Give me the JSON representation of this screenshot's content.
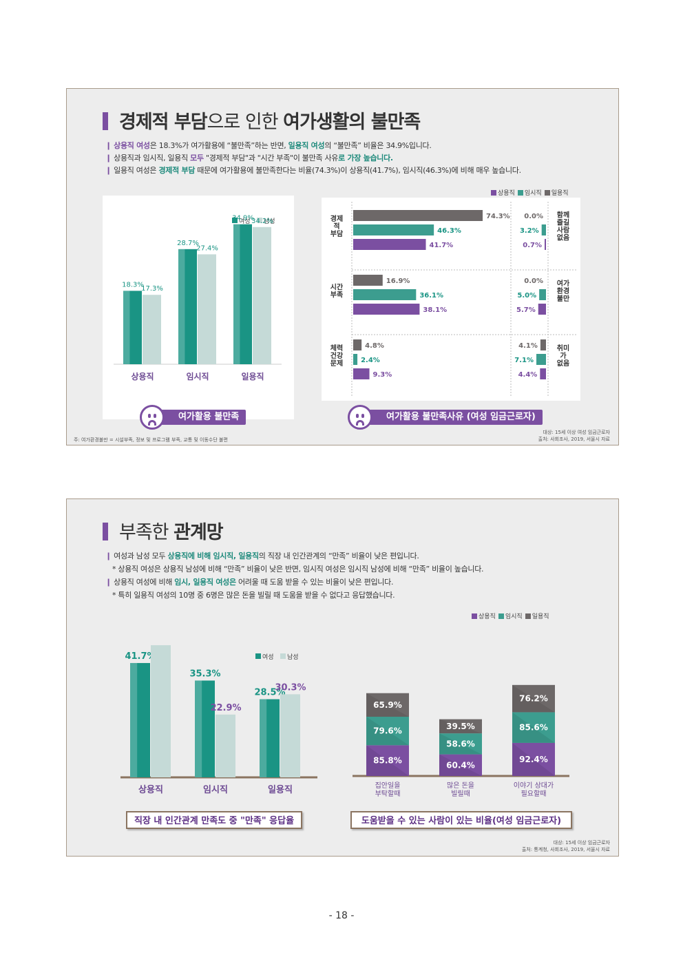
{
  "panel1": {
    "title": {
      "b1": "경제적 부담",
      "t1": "으로 인한 ",
      "b2": "여가생활의 불만족"
    },
    "bullets": [
      [
        {
          "t": "상용직 여성",
          "c": "p"
        },
        {
          "t": "은 18.3%가 여가활용에 “불만족”하는 반면, "
        },
        {
          "t": "일용직 여성",
          "c": "g"
        },
        {
          "t": "의 “불만족” 비율은 34.9%입니다."
        }
      ],
      [
        {
          "t": "상용직과 임시직, 일용직 "
        },
        {
          "t": "모두",
          "c": "p"
        },
        {
          "t": " \"경제적 부담\"과 \"시간 부족\"이 불만족 사유"
        },
        {
          "t": "로 가장 높습니다.",
          "c": "g"
        }
      ],
      [
        {
          "t": "일용직 여성은 "
        },
        {
          "t": "경제적 부담",
          "c": "g"
        },
        {
          "t": " 때문에 여가활용에 불만족한다는 비율(74.3%)이 상용직(41.7%), 임시직(46.3%)에 비해 매우 높습니다."
        }
      ]
    ],
    "chart_left": {
      "type": "bar",
      "categories": [
        "상용직",
        "임시직",
        "일용직"
      ],
      "series": [
        {
          "name": "여성",
          "values": [
            18.3,
            28.7,
            34.9
          ],
          "color": "#1a9484"
        },
        {
          "name": "남성",
          "values": [
            17.3,
            27.4,
            34.2
          ],
          "color": "#c5dad7"
        }
      ],
      "value_suffix": "%",
      "ylim": [
        0,
        40
      ]
    },
    "chart_right": {
      "type": "bar",
      "orientation": "horizontal",
      "legend": [
        "상용직",
        "임시직",
        "일용직"
      ],
      "colors": {
        "상용직": "#7b4fa1",
        "임시직": "#3c9d8f",
        "일용직": "#6d6868"
      },
      "groups_left": [
        {
          "label": "경제\n적\n부담",
          "values": {
            "일용직": 74.3,
            "임시직": 46.3,
            "상용직": 41.7
          }
        },
        {
          "label": "시간\n부족",
          "values": {
            "일용직": 16.9,
            "임시직": 36.1,
            "상용직": 38.1
          }
        },
        {
          "label": "체력\n건강\n문제",
          "values": {
            "일용직": 4.8,
            "임시직": 2.4,
            "상용직": 9.3
          }
        }
      ],
      "groups_right": [
        {
          "label": "함께\n즐길\n사람\n없음",
          "values": {
            "일용직": 0.0,
            "임시직": 3.2,
            "상용직": 0.7
          }
        },
        {
          "label": "여가\n환경\n불만",
          "values": {
            "일용직": 0.0,
            "임시직": 5.0,
            "상용직": 5.7
          }
        },
        {
          "label": "취미\n가\n없음",
          "values": {
            "일용직": 4.1,
            "임시직": 7.1,
            "상용직": 4.4
          }
        }
      ]
    },
    "sub_title_left": "여가활용 불만족",
    "sub_title_right": "여가활용 불만족사유 (여성 임금근로자)",
    "note_left": "주: 여가환경불만 = 시설부족, 정보 및 프로그램 부족, 교통 및 이동수단 불편",
    "note_right_1": "대상: 15세 이상 여성 임금근로자",
    "note_right_2": "출처: 사회조사, 2019, 서울시 자료"
  },
  "panel2": {
    "title": {
      "t1": "부족한 ",
      "b1": "관계망"
    },
    "bullets": [
      {
        "sub": false,
        "parts": [
          {
            "t": "여성과 남성 모두 "
          },
          {
            "t": "상용직에 비해 임시직, 일용직",
            "c": "g"
          },
          {
            "t": "의 직장 내 인간관계의 “만족” 비율이 낮은 편입니다."
          }
        ]
      },
      {
        "sub": true,
        "parts": [
          {
            "t": "* 상용직 여성은 상용직 남성에 비해 “만족” 비율이 낮은 반면, 임시직 여성은 임시직 남성에 비해 “만족” 비율이 높습니다."
          }
        ]
      },
      {
        "sub": false,
        "parts": [
          {
            "t": "상용직 여성"
          },
          {
            "t": "에 비해 "
          },
          {
            "t": "임시, 일용직 여성은",
            "c": "g"
          },
          {
            "t": " 어려울 때 도움 받을 수 있는 비율이 낮은 편입니다."
          }
        ]
      },
      {
        "sub": true,
        "parts": [
          {
            "t": "* 특히 일용직 여성의 10명 중 6명은 많은 돈을 빌릴 때 도움을 받을 수 없다고 응답했습니다."
          }
        ]
      }
    ],
    "chart_left": {
      "type": "bar",
      "categories": [
        "상용직",
        "임시직",
        "일용직"
      ],
      "series": [
        {
          "name": "여성",
          "values": [
            41.7,
            35.3,
            28.5
          ],
          "color": "#1a9484"
        },
        {
          "name": "남성",
          "values": [
            48.2,
            22.9,
            30.3
          ],
          "color": "#c5dad7"
        }
      ],
      "value_suffix": "%",
      "ylim": [
        0,
        55
      ]
    },
    "chart_right": {
      "type": "bar",
      "stacked": true,
      "legend": [
        "상용직",
        "임시직",
        "일용직"
      ],
      "colors": {
        "상용직": "#7b4fa1",
        "임시직": "#3c9d8f",
        "일용직": "#6d6868"
      },
      "categories": [
        "집안일을\n부탁할때",
        "많은 돈을\n빌릴때",
        "이야기 상대가\n필요할때"
      ],
      "series": [
        {
          "name": "상용직",
          "values": [
            85.8,
            60.4,
            92.4
          ]
        },
        {
          "name": "임시직",
          "values": [
            79.6,
            58.6,
            85.6
          ]
        },
        {
          "name": "일용직",
          "values": [
            65.9,
            39.5,
            76.2
          ]
        }
      ],
      "value_suffix": "%"
    },
    "sub_title_left": "직장 내 인간관계 만족도 중 \"만족\" 응답율",
    "sub_title_right": "도움받을 수 있는 사람이 있는 비율(여성 임금근로자)",
    "note_right_1": "대상: 15세 이상 임금근로자",
    "note_right_2": "출처: 통계청, 사회조사, 2019, 서울시 자료"
  },
  "page_number": "- 18 -"
}
